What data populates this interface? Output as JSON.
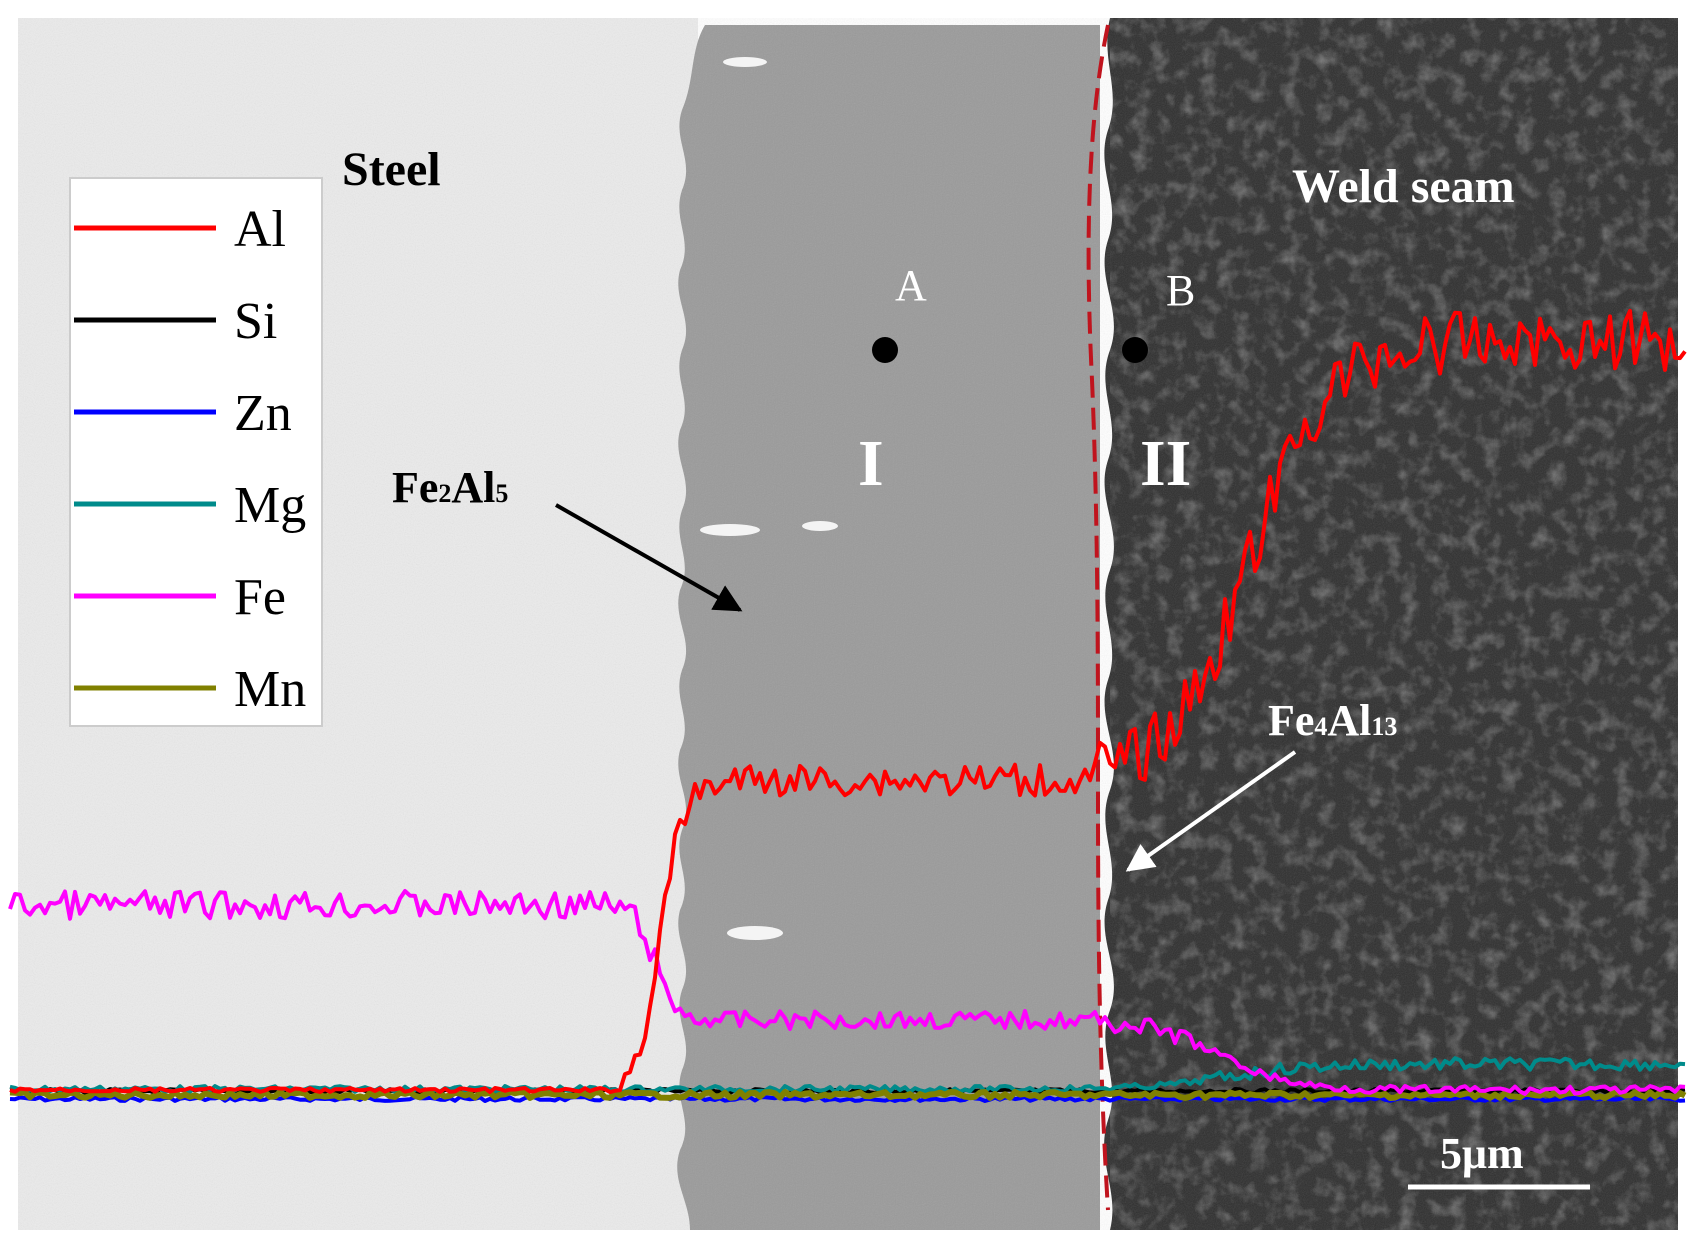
{
  "regions": {
    "steel": "Steel",
    "weld_seam": "Weld seam"
  },
  "phases": {
    "fe2al5": {
      "prefix": "Fe",
      "sub1": "2",
      "mid": "Al",
      "sub2": "5"
    },
    "fe4al13": {
      "prefix": "Fe",
      "sub1": "4",
      "mid": "Al",
      "sub2": "13"
    }
  },
  "points": {
    "a": "A",
    "b": "B"
  },
  "layers": {
    "one": "I",
    "two": "II"
  },
  "scale_bar": {
    "label": "5μm"
  },
  "legend": {
    "items": [
      {
        "name": "Al",
        "color": "#ff0000"
      },
      {
        "name": "Si",
        "color": "#000000"
      },
      {
        "name": "Zn",
        "color": "#0000ff"
      },
      {
        "name": "Mg",
        "color": "#008b8b"
      },
      {
        "name": "Fe",
        "color": "#ff00ff"
      },
      {
        "name": "Mn",
        "color": "#808000"
      }
    ]
  },
  "colors": {
    "steel": "#ebebeb",
    "fe2al5_layer": "#9a9a9a",
    "weld_seam": "#2e2e2e",
    "boundary_dash": "#c0141e"
  },
  "chart_data": {
    "type": "line",
    "description_units": "relative intensity of EDS line scan (no printed axis)",
    "series": [
      {
        "name": "Al",
        "color": "#ff0000"
      },
      {
        "name": "Si",
        "color": "#000000"
      },
      {
        "name": "Zn",
        "color": "#0000ff"
      },
      {
        "name": "Mg",
        "color": "#008b8b"
      },
      {
        "name": "Fe",
        "color": "#ff00ff"
      },
      {
        "name": "Mn",
        "color": "#808000"
      }
    ]
  }
}
